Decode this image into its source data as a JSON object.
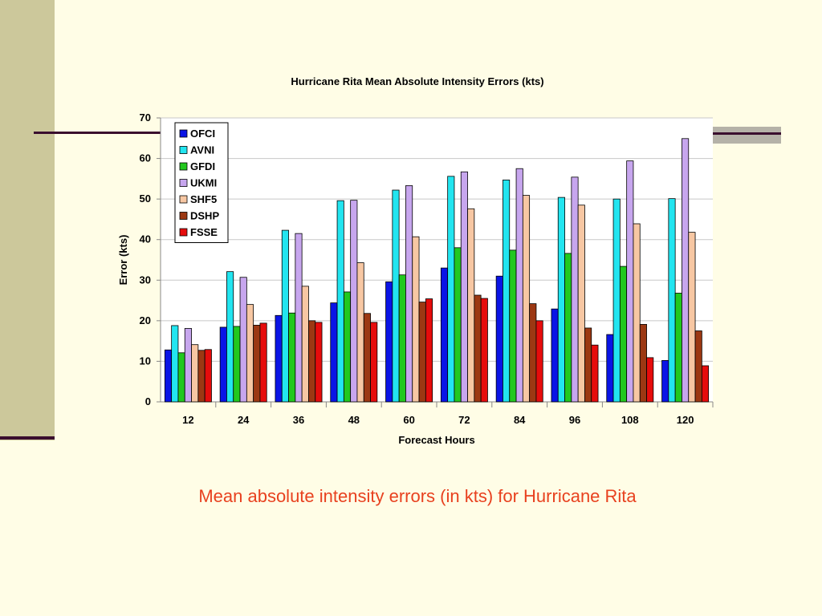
{
  "slide": {
    "caption": "Mean absolute intensity errors (in kts) for Hurricane Rita",
    "accent_band_color": "#CCC89B",
    "rule_color": "#3A0E2E",
    "background_color": "#FFFDE6",
    "caption_color": "#E8411F"
  },
  "chart_data": {
    "type": "bar",
    "title": "Hurricane Rita Mean Absolute Intensity Errors (kts)",
    "xlabel": "Forecast Hours",
    "ylabel": "Error (kts)",
    "ylim": [
      0,
      70
    ],
    "yticks": [
      0,
      10,
      20,
      30,
      40,
      50,
      60,
      70
    ],
    "grid": true,
    "legend_position": "top-left",
    "categories": [
      "12",
      "24",
      "36",
      "48",
      "60",
      "72",
      "84",
      "96",
      "108",
      "120"
    ],
    "series": [
      {
        "name": "OFCI",
        "color": "#0A14E6",
        "values": [
          12.8,
          18.4,
          21.3,
          24.4,
          29.6,
          33.0,
          31.0,
          22.9,
          16.6,
          10.2
        ]
      },
      {
        "name": "AVNI",
        "color": "#22E5F0",
        "values": [
          18.8,
          32.1,
          42.3,
          49.6,
          52.2,
          55.6,
          54.7,
          50.4,
          50.0,
          50.1
        ]
      },
      {
        "name": "GFDI",
        "color": "#22C81E",
        "values": [
          12.1,
          18.6,
          21.9,
          27.1,
          31.3,
          38.0,
          37.4,
          36.6,
          33.4,
          26.8
        ]
      },
      {
        "name": "UKMI",
        "color": "#C7A6EE",
        "values": [
          18.1,
          30.7,
          41.5,
          49.7,
          53.3,
          56.7,
          57.5,
          55.4,
          59.4,
          64.9
        ]
      },
      {
        "name": "SHF5",
        "color": "#F7C7A3",
        "values": [
          14.1,
          24.0,
          28.5,
          34.3,
          40.7,
          47.6,
          50.9,
          48.5,
          43.9,
          41.8
        ]
      },
      {
        "name": "DSHP",
        "color": "#9C3813",
        "values": [
          12.7,
          18.9,
          20.0,
          21.8,
          24.6,
          26.3,
          24.2,
          18.2,
          19.1,
          17.5
        ]
      },
      {
        "name": "FSSE",
        "color": "#E60C0C",
        "values": [
          12.9,
          19.4,
          19.6,
          19.6,
          25.4,
          25.5,
          20.0,
          14.0,
          10.9,
          8.9
        ]
      }
    ]
  }
}
